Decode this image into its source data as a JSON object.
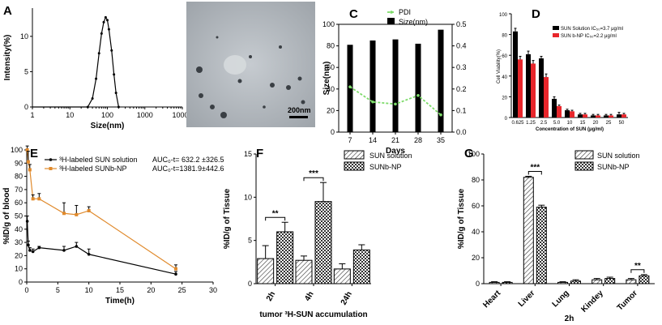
{
  "chart_data": [
    {
      "panel": "A",
      "type": "line",
      "xlabel": "Size(nm)",
      "ylabel": "Intensity(%)",
      "xscale": "log",
      "xlim": [
        1,
        10000
      ],
      "ylim": [
        0,
        14
      ],
      "xticks": [
        1,
        10,
        100,
        1000,
        10000
      ],
      "yticks": [
        0,
        5,
        10
      ],
      "x": [
        30,
        40,
        50,
        60,
        70,
        80,
        90,
        100,
        110,
        130,
        150,
        170,
        200
      ],
      "y": [
        0,
        1.2,
        4.0,
        7.6,
        10.4,
        12.0,
        12.7,
        12.3,
        11.0,
        8.0,
        4.6,
        2.0,
        0
      ],
      "grid": false
    },
    {
      "panel": "B",
      "type": "image",
      "scalebar": "200nm"
    },
    {
      "panel": "C",
      "type": "bar",
      "xlabel": "Days",
      "ylabel": "Size(nm)",
      "y2label": "",
      "categories": [
        "7",
        "14",
        "21",
        "28",
        "35"
      ],
      "ylim": [
        0,
        100
      ],
      "y2lim": [
        0,
        0.5
      ],
      "yticks": [
        0,
        20,
        40,
        60,
        80,
        100
      ],
      "y2ticks": [
        0.0,
        0.1,
        0.2,
        0.3,
        0.4,
        0.5
      ],
      "series": [
        {
          "name": "Size(nm)",
          "axis": "left",
          "values": [
            81,
            85,
            86,
            82,
            95
          ],
          "color": "#000000"
        },
        {
          "name": "PDI",
          "axis": "right",
          "values": [
            0.21,
            0.14,
            0.13,
            0.17,
            0.08
          ],
          "color": "#7ddb6a"
        }
      ],
      "legend": "top"
    },
    {
      "panel": "D",
      "type": "bar",
      "xlabel": "Concentration of SUN (μg/ml)",
      "ylabel": "Cell Viability(%)",
      "categories": [
        "0.625",
        "1.25",
        "2.5",
        "5.0",
        "10",
        "15",
        "20",
        "25",
        "50"
      ],
      "ylim": [
        0,
        100
      ],
      "yticks": [
        0,
        20,
        40,
        60,
        80,
        100
      ],
      "series": [
        {
          "name": "SUN Solution IC₅₀=3.7 μg/ml",
          "values": [
            83,
            61,
            57,
            18,
            7,
            3,
            2,
            2,
            3
          ],
          "errors": [
            3,
            3,
            2,
            2,
            1,
            1,
            1,
            1,
            2
          ],
          "color": "#000000"
        },
        {
          "name": "SUN b-NP IC₅₀=2.2 μg/ml",
          "values": [
            56,
            52,
            39,
            11,
            6,
            3,
            2,
            2,
            3
          ],
          "errors": [
            3,
            3,
            3,
            1,
            1,
            1,
            1,
            1,
            1
          ],
          "color": "#e8262b"
        }
      ],
      "legend": "top-right"
    },
    {
      "panel": "E",
      "type": "line",
      "xlabel": "Time(h)",
      "ylabel": "%ID/g of blood",
      "xlim": [
        0,
        30
      ],
      "ylim": [
        0,
        100
      ],
      "xticks": [
        0,
        5,
        10,
        15,
        20,
        25,
        30
      ],
      "yticks": [
        0,
        10,
        20,
        30,
        40,
        50,
        60,
        70,
        80,
        90,
        100
      ],
      "series": [
        {
          "name": "³H-labeled SUN solution",
          "auc": "AUC₀-t= 632.2 ±326.5",
          "x": [
            0.083,
            0.25,
            0.5,
            1,
            2,
            6,
            8,
            10,
            24
          ],
          "y": [
            46,
            28,
            24,
            23,
            26,
            24,
            27,
            21,
            6
          ],
          "errors": [
            4,
            3,
            2,
            2,
            1,
            3,
            3,
            4,
            2
          ],
          "color": "#000000"
        },
        {
          "name": "³H-labeled SUNb-NP",
          "auc": "AUC₀-t=1381.9±442.6",
          "x": [
            0.083,
            0.25,
            0.5,
            1,
            2,
            6,
            8,
            10,
            24
          ],
          "y": [
            100,
            91,
            85,
            63,
            63,
            52,
            51,
            54,
            10
          ],
          "errors": [
            3,
            8,
            4,
            3,
            4,
            8,
            7,
            3,
            3
          ],
          "color": "#e08a2c"
        }
      ],
      "legend": "top-right"
    },
    {
      "panel": "F",
      "type": "bar",
      "xlabel": "tumor ³H-SUN accumulation",
      "ylabel": "%ID/g of Tissue",
      "categories": [
        "2h",
        "4h",
        "24h"
      ],
      "ylim": [
        0,
        15
      ],
      "yticks": [
        0,
        5,
        10,
        15
      ],
      "series": [
        {
          "name": "SUN solution",
          "values": [
            2.9,
            2.7,
            1.7
          ],
          "errors": [
            1.5,
            0.5,
            0.6
          ]
        },
        {
          "name": "SUNb-NP",
          "values": [
            6.0,
            9.5,
            3.9
          ],
          "errors": [
            1.1,
            2.2,
            0.6
          ]
        }
      ],
      "significance": [
        {
          "category": "2h",
          "label": "**"
        },
        {
          "category": "4h",
          "label": "***"
        }
      ],
      "legend": "top"
    },
    {
      "panel": "G",
      "type": "bar",
      "xlabel": "2h",
      "ylabel": "%ID/g of Tissue",
      "categories": [
        "Heart",
        "Liver",
        "Lung",
        "Kindey",
        "Tumor"
      ],
      "ylim": [
        0,
        100
      ],
      "yticks": [
        0,
        20,
        40,
        60,
        80,
        100
      ],
      "series": [
        {
          "name": "SUN solution",
          "values": [
            1,
            82,
            1,
            3,
            3
          ],
          "errors": [
            0.5,
            0.8,
            0.5,
            1,
            1
          ]
        },
        {
          "name": "SUNb-NP",
          "values": [
            1,
            59,
            2,
            4,
            6
          ],
          "errors": [
            0.5,
            1.5,
            1,
            1,
            1
          ]
        }
      ],
      "significance": [
        {
          "category": "Liver",
          "label": "***"
        },
        {
          "category": "Tumor",
          "label": "**"
        }
      ],
      "legend": "top-right"
    }
  ]
}
